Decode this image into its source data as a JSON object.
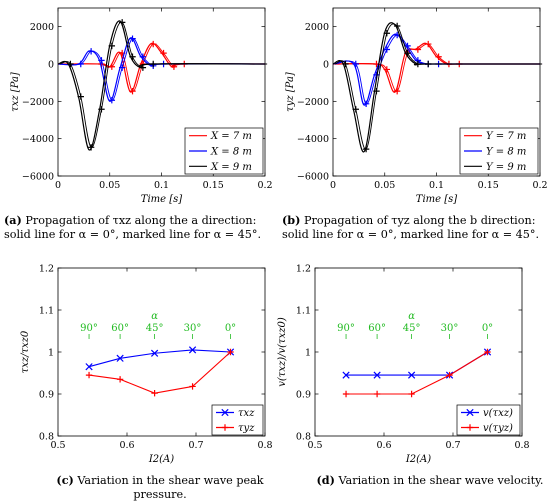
{
  "captions": {
    "a": {
      "label": "(a)",
      "text": " Propagation of τxz along the a direction: solid line for α = 0°, marked line for α = 45°."
    },
    "b": {
      "label": "(b)",
      "text": " Propagation of τyz along the b direction: solid line for α = 0°, marked line for α = 45°."
    },
    "c": {
      "label": "(c)",
      "text": " Variation in the shear wave peak pressure."
    },
    "d": {
      "label": "(d)",
      "text": " Variation in the shear wave velocity."
    }
  },
  "chart_data": [
    {
      "id": "a",
      "type": "line",
      "xlabel": "Time [s]",
      "ylabel": "τxz [Pa]",
      "xlim": [
        0,
        0.2
      ],
      "ylim": [
        -6000,
        3000
      ],
      "xticks": [
        0,
        0.05,
        0.1,
        0.15,
        0.2
      ],
      "yticks": [
        -6000,
        -4000,
        -2000,
        0,
        2000
      ],
      "legend_position": "bottom-right",
      "series": [
        {
          "name": "X = 7 m",
          "color": "#ff0000",
          "x": [
            0,
            0.04,
            0.05,
            0.06,
            0.07,
            0.08,
            0.09,
            0.1,
            0.11,
            0.12,
            0.2
          ],
          "y": [
            0,
            0,
            -150,
            600,
            -1500,
            0,
            1100,
            600,
            -150,
            0,
            0
          ]
        },
        {
          "name": "X = 8 m",
          "color": "#0000ff",
          "x": [
            0,
            0.02,
            0.03,
            0.04,
            0.05,
            0.06,
            0.07,
            0.08,
            0.09,
            0.1,
            0.2
          ],
          "y": [
            0,
            0,
            700,
            200,
            -2000,
            -200,
            1400,
            400,
            -100,
            0,
            0
          ]
        },
        {
          "name": "X = 9 m",
          "color": "#000000",
          "x": [
            0,
            0.01,
            0.02,
            0.03,
            0.04,
            0.05,
            0.06,
            0.07,
            0.08,
            0.09,
            0.2
          ],
          "y": [
            0,
            0,
            -1800,
            -4600,
            -2500,
            1000,
            2300,
            400,
            -200,
            0,
            0
          ]
        }
      ]
    },
    {
      "id": "b",
      "type": "line",
      "xlabel": "Time [s]",
      "ylabel": "τyz [Pa]",
      "xlim": [
        0,
        0.2
      ],
      "ylim": [
        -6000,
        3000
      ],
      "xticks": [
        0,
        0.05,
        0.1,
        0.15,
        0.2
      ],
      "yticks": [
        -6000,
        -4000,
        -2000,
        0,
        2000
      ],
      "legend_position": "bottom-right",
      "series": [
        {
          "name": "Y = 7 m",
          "color": "#ff0000",
          "x": [
            0,
            0.04,
            0.05,
            0.06,
            0.07,
            0.08,
            0.09,
            0.1,
            0.11,
            0.12,
            0.2
          ],
          "y": [
            0,
            0,
            -300,
            -1500,
            600,
            800,
            1100,
            400,
            0,
            0,
            0
          ]
        },
        {
          "name": "Y = 8 m",
          "color": "#0000ff",
          "x": [
            0,
            0.02,
            0.03,
            0.04,
            0.05,
            0.06,
            0.07,
            0.08,
            0.09,
            0.1,
            0.2
          ],
          "y": [
            0,
            0,
            -2200,
            -600,
            800,
            1600,
            1000,
            200,
            0,
            0,
            0
          ]
        },
        {
          "name": "Y = 9 m",
          "color": "#000000",
          "x": [
            0,
            0.01,
            0.02,
            0.03,
            0.04,
            0.05,
            0.06,
            0.07,
            0.08,
            0.09,
            0.2
          ],
          "y": [
            0,
            0,
            -2500,
            -4700,
            -1500,
            1700,
            2100,
            600,
            0,
            0,
            0
          ]
        }
      ]
    },
    {
      "id": "c",
      "type": "line",
      "xlabel": "I2(A)",
      "ylabel": "τxz/τxz0",
      "xlim": [
        0.5,
        0.8
      ],
      "ylim": [
        0.8,
        1.2
      ],
      "xticks": [
        0.5,
        0.6,
        0.7,
        0.8
      ],
      "yticks": [
        0.8,
        0.9,
        1,
        1.1,
        1.2
      ],
      "legend_position": "bottom-right",
      "annotations": {
        "alpha_label": "α",
        "angles": [
          "90°",
          "60°",
          "45°",
          "30°",
          "0°"
        ],
        "angle_x": [
          0.545,
          0.59,
          0.64,
          0.695,
          0.75
        ],
        "y": 1.05
      },
      "series": [
        {
          "name": "τxz",
          "color": "#0000ff",
          "marker": "x",
          "x": [
            0.545,
            0.59,
            0.64,
            0.695,
            0.75
          ],
          "y": [
            0.965,
            0.985,
            0.997,
            1.005,
            1.0
          ]
        },
        {
          "name": "τyz",
          "color": "#ff0000",
          "marker": "+",
          "x": [
            0.545,
            0.59,
            0.64,
            0.695,
            0.75
          ],
          "y": [
            0.945,
            0.935,
            0.902,
            0.918,
            1.0
          ]
        }
      ]
    },
    {
      "id": "d",
      "type": "line",
      "xlabel": "I2(A)",
      "ylabel": "v(τxz)/v(τxz0)",
      "xlim": [
        0.5,
        0.8
      ],
      "ylim": [
        0.8,
        1.2
      ],
      "xticks": [
        0.5,
        0.6,
        0.7,
        0.8
      ],
      "yticks": [
        0.8,
        0.9,
        1,
        1.1,
        1.2
      ],
      "legend_position": "bottom-right",
      "annotations": {
        "alpha_label": "α",
        "angles": [
          "90°",
          "60°",
          "45°",
          "30°",
          "0°"
        ],
        "angle_x": [
          0.545,
          0.59,
          0.64,
          0.695,
          0.75
        ],
        "y": 1.05
      },
      "series": [
        {
          "name": "v(τxz)",
          "color": "#0000ff",
          "marker": "x",
          "x": [
            0.545,
            0.59,
            0.64,
            0.695,
            0.75
          ],
          "y": [
            0.945,
            0.945,
            0.945,
            0.945,
            1.0
          ]
        },
        {
          "name": "v(τyz)",
          "color": "#ff0000",
          "marker": "+",
          "x": [
            0.545,
            0.59,
            0.64,
            0.695,
            0.75
          ],
          "y": [
            0.9,
            0.9,
            0.9,
            0.945,
            1.0
          ]
        }
      ]
    }
  ]
}
